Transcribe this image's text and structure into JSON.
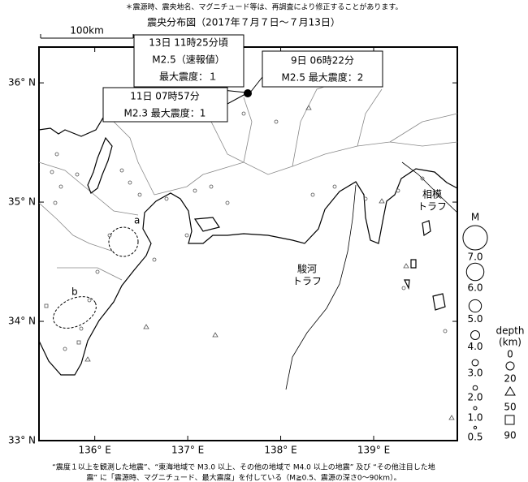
{
  "header": {
    "note": "＊震源時、震央地名、マグニチュード等は、再調査により修正することがあります。",
    "title": "震央分布図（2017年７月７日～７月13日）"
  },
  "map": {
    "scale": "100km",
    "lonlim": [
      135.4,
      139.9
    ],
    "latlim": [
      33.0,
      36.3
    ],
    "lat_ticks": [
      {
        "value": 36,
        "label": "36° N"
      },
      {
        "value": 35,
        "label": "35° N"
      },
      {
        "value": 34,
        "label": "34° N"
      },
      {
        "value": 33,
        "label": "33° N"
      }
    ],
    "lon_ticks": [
      {
        "value": 136,
        "label": "136° E"
      },
      {
        "value": 137,
        "label": "137° E"
      },
      {
        "value": 138,
        "label": "138° E"
      },
      {
        "value": 139,
        "label": "139° E"
      }
    ],
    "labels": [
      "a",
      "b",
      "駿河",
      "トラフ",
      "相模",
      "トラフ"
    ]
  },
  "callouts": [
    {
      "lines": [
        "13日 11時25分頃",
        "M2.5（速報値）",
        "最大震度：１"
      ]
    },
    {
      "lines": [
        "9日 06時22分",
        "M2.5 最大震度：2"
      ]
    },
    {
      "lines": [
        "11日 07時57分",
        "M2.3 最大震度：1"
      ]
    }
  ],
  "legend": {
    "magnitude_title": "M",
    "magnitudes": [
      {
        "value": 7,
        "label": "7.0"
      },
      {
        "value": 6,
        "label": "6.0"
      },
      {
        "value": 5,
        "label": "5.0"
      },
      {
        "value": 4,
        "label": "4.0"
      },
      {
        "value": 3,
        "label": "3.0"
      },
      {
        "value": 2,
        "label": "2.0"
      },
      {
        "value": 1,
        "label": "1.0"
      },
      0.5
    ],
    "depth_title": "depth",
    "depth_unit": "(km)",
    "depth_labels": [
      0,
      20,
      50,
      90
    ]
  },
  "footer": {
    "lines": [
      "“震度１以上を観測した地震”、“東海地域で M3.0 以上、その他の地域で M4.0 以上の地震” 及び “その他注目した地",
      "震” に「震源時、マグニチュード、最大震度」を付している（M≧0.5、震源の深さ0～90km）。"
    ]
  }
}
